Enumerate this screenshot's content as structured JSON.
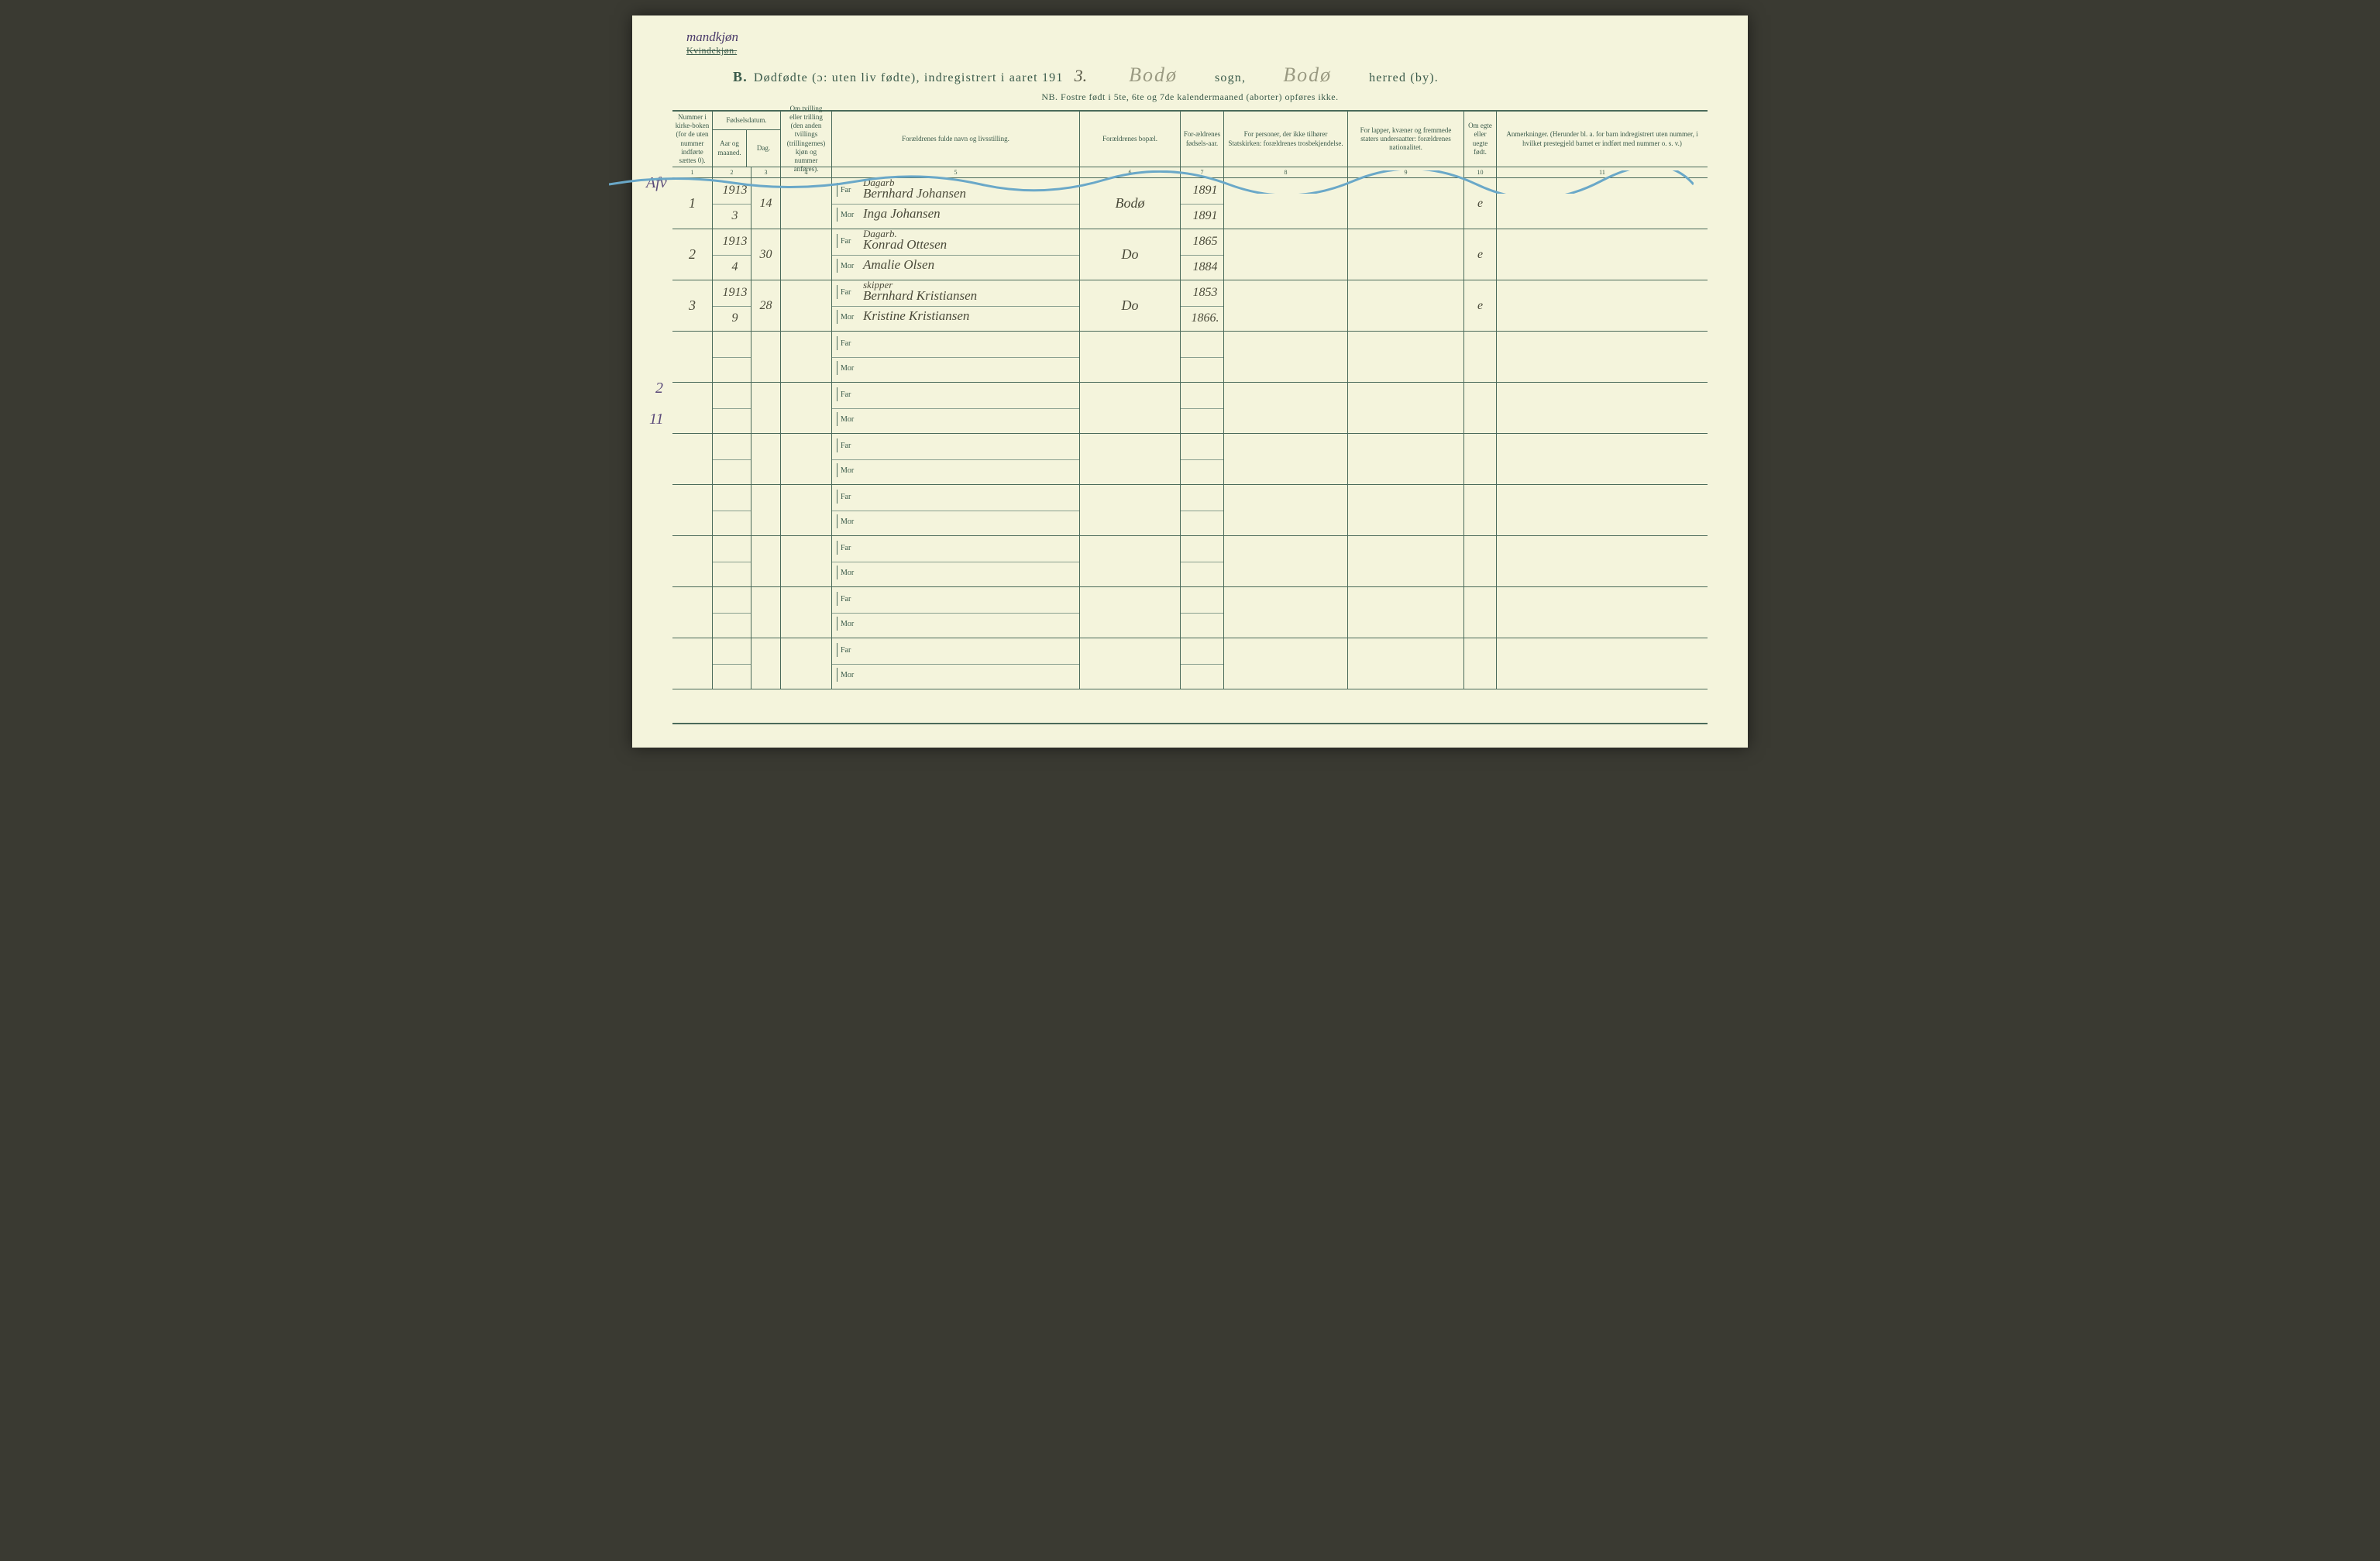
{
  "gender": {
    "handwritten": "mandkjøn",
    "struck": "Kvindekjøn."
  },
  "title": {
    "prefix_b": "B.",
    "printed1": "Dødfødte (ɔ: uten liv fødte), indregistrert i aaret 191",
    "year_suffix": "3.",
    "sogn_hand": "Bodø",
    "sogn_label": "sogn,",
    "herred_hand": "Bodø",
    "herred_label": "herred (by)."
  },
  "nb": "NB.  Fostre født i 5te, 6te og 7de kalendermaaned (aborter) opføres ikke.",
  "columns": {
    "c1": "Nummer i kirke-boken (for de uten nummer indførte sættes 0).",
    "c2_top": "Fødselsdatum.",
    "c2a": "Aar og maaned.",
    "c2b": "Dag.",
    "c4": "Om tvilling eller trilling (den anden tvillings (trillingernes) kjøn og nummer anføres).",
    "c5": "Forældrenes fulde navn og livsstilling.",
    "c6": "Forældrenes bopæl.",
    "c7": "For-ældrenes fødsels-aar.",
    "c8": "For personer, der ikke tilhører Statskirken: forældrenes trosbekjendelse.",
    "c9": "For lapper, kvæner og fremmede staters undersaatter: forældrenes nationalitet.",
    "c10": "Om egte eller uegte født.",
    "c11": "Anmerkninger. (Herunder bl. a. for barn indregistrert uten nummer, i hvilket prestegjeld barnet er indført med nummer o. s. v.)"
  },
  "colnums": [
    "1",
    "2",
    "3",
    "4",
    "5",
    "6",
    "7",
    "8",
    "9",
    "10",
    "11"
  ],
  "labels": {
    "far": "Far",
    "mor": "Mor"
  },
  "margin": {
    "afv": "Afv",
    "two": "2",
    "eleven": "11"
  },
  "entries": [
    {
      "num": "1",
      "year_month_top": "1913",
      "year_month_bot": "3",
      "day": "14",
      "occ": "Dagarb",
      "far": "Bernhard Johansen",
      "mor": "Inga Johansen",
      "bopel": "Bodø",
      "faar_top": "1891",
      "faar_bot": "1891",
      "egte": "e"
    },
    {
      "num": "2",
      "year_month_top": "1913",
      "year_month_bot": "4",
      "day": "30",
      "occ": "Dagarb.",
      "far": "Konrad Ottesen",
      "mor": "Amalie Olsen",
      "bopel": "Do",
      "faar_top": "1865",
      "faar_bot": "1884",
      "egte": "e"
    },
    {
      "num": "3",
      "year_month_top": "1913",
      "year_month_bot": "9",
      "day": "28",
      "occ": "skipper",
      "far": "Bernhard Kristiansen",
      "mor": "Kristine Kristiansen",
      "bopel": "Do",
      "faar_top": "1853",
      "faar_bot": "1866.",
      "egte": "e"
    },
    {
      "num": "",
      "far": "",
      "mor": ""
    },
    {
      "num": "",
      "far": "",
      "mor": ""
    },
    {
      "num": "",
      "far": "",
      "mor": ""
    },
    {
      "num": "",
      "far": "",
      "mor": ""
    },
    {
      "num": "",
      "far": "",
      "mor": ""
    },
    {
      "num": "",
      "far": "",
      "mor": ""
    },
    {
      "num": "",
      "far": "",
      "mor": ""
    }
  ],
  "style": {
    "page_bg": "#f4f4dc",
    "ink_print": "#3a5a4a",
    "ink_hand": "#4a4a3a",
    "ink_purple": "#5a4a7a",
    "wave_color": "#6aa8c8",
    "rule_color": "#4a6a5a"
  }
}
